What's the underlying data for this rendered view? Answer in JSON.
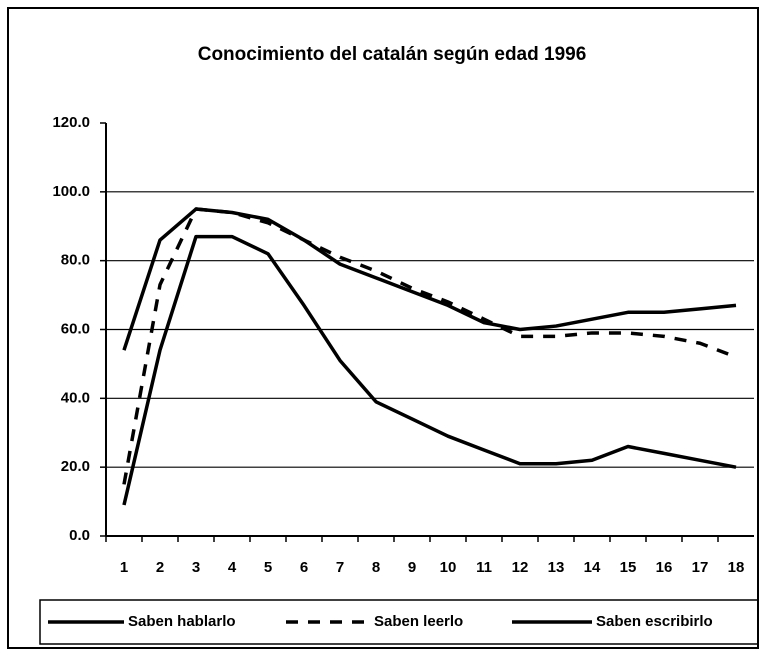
{
  "chart_data": {
    "type": "line",
    "title": "Conocimiento del catalán según edad 1996",
    "categories": [
      "1",
      "2",
      "3",
      "4",
      "5",
      "6",
      "7",
      "8",
      "9",
      "10",
      "11",
      "12",
      "13",
      "14",
      "15",
      "16",
      "17",
      "18"
    ],
    "series": [
      {
        "name": "Saben hablarlo",
        "color": "#000000",
        "dash": "solid",
        "values": [
          54,
          86,
          95,
          94,
          92,
          86,
          79,
          75,
          71,
          67,
          62,
          60,
          61,
          63,
          65,
          65,
          66,
          67
        ]
      },
      {
        "name": "Saben leerlo",
        "color": "#000000",
        "dash": "dashed",
        "values": [
          15,
          73,
          95,
          94,
          91,
          86,
          81,
          77,
          72,
          68,
          63,
          58,
          58,
          59,
          59,
          58,
          56,
          52
        ]
      },
      {
        "name": "Saben escribirlo",
        "color": "#000000",
        "dash": "solid",
        "values": [
          9,
          54,
          87,
          87,
          82,
          67,
          51,
          39,
          34,
          29,
          25,
          21,
          21,
          22,
          26,
          24,
          22,
          20
        ]
      }
    ],
    "ylim": [
      0,
      120
    ],
    "yticks": [
      {
        "value": 0,
        "label": "0.0"
      },
      {
        "value": 20,
        "label": "20.0"
      },
      {
        "value": 40,
        "label": "40.0"
      },
      {
        "value": 60,
        "label": "60.0"
      },
      {
        "value": 80,
        "label": "80.0"
      },
      {
        "value": 100,
        "label": "100.0"
      },
      {
        "value": 120,
        "label": "120.0"
      }
    ],
    "grid": true,
    "legend": "bottom"
  }
}
